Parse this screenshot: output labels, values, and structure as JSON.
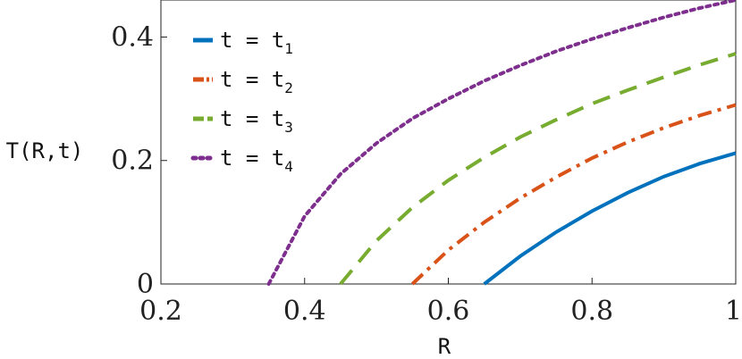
{
  "chart_data": {
    "type": "line",
    "xlabel": "R",
    "ylabel": "T(R,t)",
    "xlim": [
      0.2,
      1.0
    ],
    "ylim": [
      0,
      0.46
    ],
    "xticks": [
      "0.2",
      "0.4",
      "0.6",
      "0.8",
      "1"
    ],
    "yticks": [
      "0",
      "0.2",
      "0.4"
    ],
    "legend_position": "top-left",
    "grid": false,
    "series": [
      {
        "name": "t = t1",
        "label_base": "t = t",
        "label_sub": "1",
        "color": "#0072BD",
        "style": "solid",
        "x": [
          0.65,
          0.7,
          0.75,
          0.8,
          0.85,
          0.9,
          0.95,
          1.0
        ],
        "y": [
          0.0,
          0.045,
          0.084,
          0.118,
          0.148,
          0.174,
          0.195,
          0.212
        ]
      },
      {
        "name": "t = t2",
        "label_base": "t = t",
        "label_sub": "2",
        "color": "#D95319",
        "style": "dashdot",
        "x": [
          0.55,
          0.6,
          0.65,
          0.7,
          0.75,
          0.8,
          0.85,
          0.9,
          0.95,
          1.0
        ],
        "y": [
          0.0,
          0.055,
          0.1,
          0.139,
          0.173,
          0.204,
          0.23,
          0.253,
          0.273,
          0.29
        ]
      },
      {
        "name": "t = t3",
        "label_base": "t = t",
        "label_sub": "3",
        "color": "#77AC30",
        "style": "dashed",
        "x": [
          0.45,
          0.5,
          0.55,
          0.6,
          0.65,
          0.7,
          0.75,
          0.8,
          0.85,
          0.9,
          0.95,
          1.0
        ],
        "y": [
          0.0,
          0.07,
          0.124,
          0.168,
          0.205,
          0.238,
          0.266,
          0.292,
          0.314,
          0.335,
          0.355,
          0.373
        ]
      },
      {
        "name": "t = t4",
        "label_base": "t = t",
        "label_sub": "4",
        "color": "#7E2F8E",
        "style": "dotted",
        "x": [
          0.35,
          0.4,
          0.45,
          0.5,
          0.55,
          0.6,
          0.65,
          0.7,
          0.75,
          0.8,
          0.85,
          0.9,
          0.95,
          1.0
        ],
        "y": [
          0.0,
          0.11,
          0.178,
          0.228,
          0.268,
          0.3,
          0.329,
          0.354,
          0.377,
          0.397,
          0.415,
          0.432,
          0.447,
          0.46
        ]
      }
    ]
  }
}
